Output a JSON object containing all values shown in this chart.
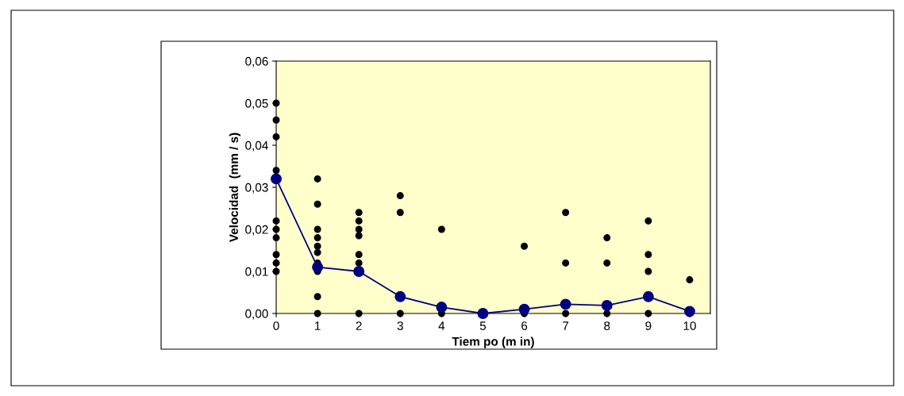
{
  "chart_data": {
    "type": "scatter",
    "xlabel": "Tiem po (m in)",
    "ylabel": "Velocidad  (mm / s)",
    "xlim": [
      0,
      10.5
    ],
    "xticks": [
      0,
      1,
      2,
      3,
      4,
      5,
      6,
      7,
      8,
      9,
      10
    ],
    "ylim": [
      0,
      0.06
    ],
    "yticks": [
      {
        "value": 0,
        "label": "0,00"
      },
      {
        "value": 0.01,
        "label": "0,01"
      },
      {
        "value": 0.02,
        "label": "0,02"
      },
      {
        "value": 0.03,
        "label": "0,03"
      },
      {
        "value": 0.04,
        "label": "0,04"
      },
      {
        "value": 0.05,
        "label": "0,05"
      },
      {
        "value": 0.06,
        "label": "0,06"
      }
    ],
    "grid": false,
    "legend": false,
    "series": [
      {
        "color": "#000000",
        "marker": "circle",
        "x": [
          0,
          0,
          0,
          0,
          0,
          0,
          0,
          0,
          0,
          0,
          1,
          1,
          1,
          1,
          1,
          1,
          1,
          1,
          1,
          1,
          2,
          2,
          2,
          2,
          2,
          2,
          2,
          3,
          3,
          3,
          4,
          4,
          6,
          6,
          7,
          7,
          7,
          8,
          8,
          8,
          9,
          9,
          9,
          9,
          10,
          10
        ],
        "values": [
          0.05,
          0.046,
          0.042,
          0.034,
          0.022,
          0.02,
          0.018,
          0.014,
          0.012,
          0.01,
          0.032,
          0.026,
          0.02,
          0.018,
          0.016,
          0.0145,
          0.012,
          0.01,
          0.004,
          0,
          0.024,
          0.022,
          0.02,
          0.0185,
          0.014,
          0.012,
          0,
          0.028,
          0.024,
          0,
          0.02,
          0,
          0.016,
          0,
          0.024,
          0.012,
          0,
          0.018,
          0.012,
          0,
          0.022,
          0.014,
          0.01,
          0,
          0.008,
          0
        ]
      },
      {
        "type": "line",
        "color": "#000080",
        "marker": "circle",
        "line_style": "solid",
        "x": [
          0,
          1,
          2,
          3,
          4,
          5,
          6,
          7,
          8,
          9,
          10
        ],
        "values": [
          0.032,
          0.011,
          0.01,
          0.004,
          0.0015,
          0,
          0.001,
          0.0022,
          0.0019,
          0.004,
          0.0005
        ]
      }
    ]
  }
}
